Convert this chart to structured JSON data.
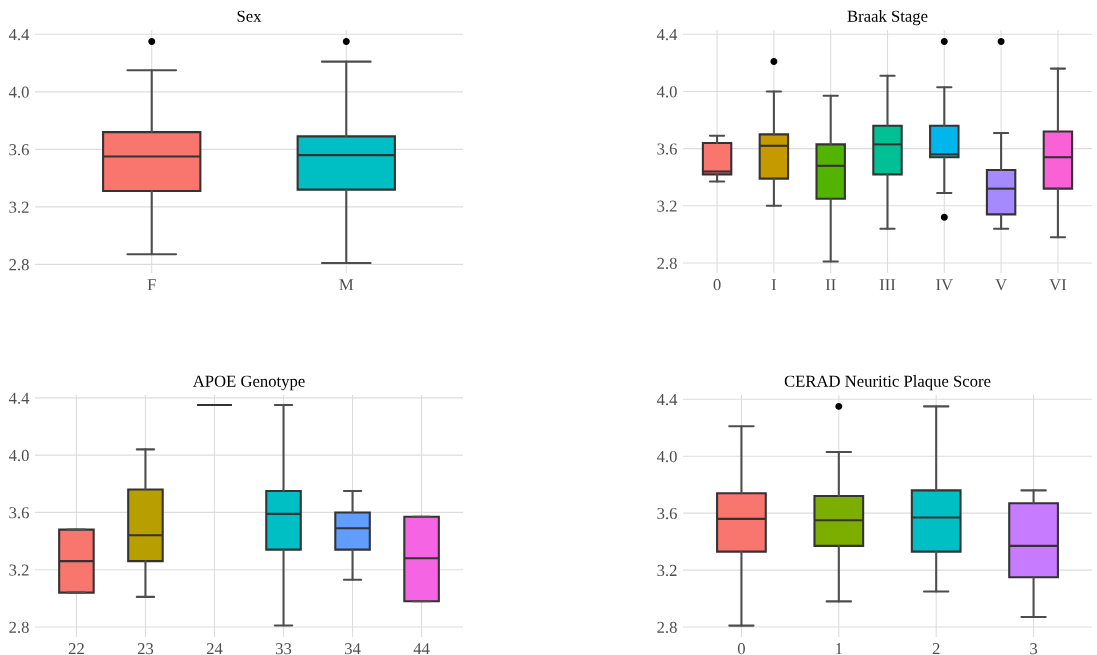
{
  "chart_data": [
    {
      "type": "box",
      "title": "Sex",
      "categories": [
        "F",
        "M"
      ],
      "colors": [
        "#f8766d",
        "#00bfc4"
      ],
      "ylim": [
        2.74,
        4.43
      ],
      "yticks": [
        {
          "value": 2.8,
          "label": "2.8"
        },
        {
          "value": 3.2,
          "label": "3.2"
        },
        {
          "value": 3.6,
          "label": "3.6"
        },
        {
          "value": 4.0,
          "label": "4.0"
        },
        {
          "value": 4.4,
          "label": "4.4"
        }
      ],
      "grid": true,
      "boxes": [
        {
          "low": 2.87,
          "q1": 3.31,
          "median": 3.55,
          "q3": 3.72,
          "high": 4.15,
          "outliers": [
            4.35
          ]
        },
        {
          "low": 2.81,
          "q1": 3.32,
          "median": 3.56,
          "q3": 3.69,
          "high": 4.21,
          "outliers": [
            4.35
          ]
        }
      ]
    },
    {
      "type": "box",
      "title": "Braak Stage",
      "categories": [
        "0",
        "I",
        "II",
        "III",
        "IV",
        "V",
        "VI"
      ],
      "colors": [
        "#f8766d",
        "#c49a00",
        "#53b400",
        "#00c094",
        "#00b6eb",
        "#a58aff",
        "#fb61d7"
      ],
      "ylim": [
        2.73,
        4.43
      ],
      "yticks": [
        {
          "value": 2.8,
          "label": "2.8"
        },
        {
          "value": 3.2,
          "label": "3.2"
        },
        {
          "value": 3.6,
          "label": "3.6"
        },
        {
          "value": 4.0,
          "label": "4.0"
        },
        {
          "value": 4.4,
          "label": "4.4"
        }
      ],
      "grid": true,
      "boxes": [
        {
          "low": 3.37,
          "q1": 3.42,
          "median": 3.44,
          "q3": 3.64,
          "high": 3.69
        },
        {
          "low": 3.2,
          "q1": 3.39,
          "median": 3.62,
          "q3": 3.7,
          "high": 4.0,
          "outliers": [
            4.21
          ]
        },
        {
          "low": 2.81,
          "q1": 3.25,
          "median": 3.48,
          "q3": 3.63,
          "high": 3.97
        },
        {
          "low": 3.04,
          "q1": 3.42,
          "median": 3.63,
          "q3": 3.76,
          "high": 4.11
        },
        {
          "low": 3.29,
          "q1": 3.54,
          "median": 3.56,
          "q3": 3.76,
          "high": 4.03,
          "outliers": [
            4.35,
            3.12
          ]
        },
        {
          "low": 3.04,
          "q1": 3.14,
          "median": 3.32,
          "q3": 3.45,
          "high": 3.71,
          "outliers": [
            4.35
          ]
        },
        {
          "low": 2.98,
          "q1": 3.32,
          "median": 3.54,
          "q3": 3.72,
          "high": 4.16
        }
      ]
    },
    {
      "type": "box",
      "title": "APOE Genotype",
      "categories": [
        "22",
        "23",
        "24",
        "33",
        "34",
        "44"
      ],
      "colors": [
        "#f8766d",
        "#b79f00",
        "#333333",
        "#00bfc4",
        "#619cff",
        "#f564e3"
      ],
      "ylim": [
        2.73,
        4.42
      ],
      "yticks": [
        {
          "value": 2.8,
          "label": "2.8"
        },
        {
          "value": 3.2,
          "label": "3.2"
        },
        {
          "value": 3.6,
          "label": "3.6"
        },
        {
          "value": 4.0,
          "label": "4.0"
        },
        {
          "value": 4.4,
          "label": "4.4"
        }
      ],
      "grid": true,
      "boxes": [
        {
          "low": 3.04,
          "q1": 3.04,
          "median": 3.26,
          "q3": 3.48,
          "high": 3.48
        },
        {
          "low": 3.01,
          "q1": 3.26,
          "median": 3.44,
          "q3": 3.76,
          "high": 4.04
        },
        {
          "low": 4.35,
          "q1": 4.35,
          "median": 4.35,
          "q3": 4.35,
          "high": 4.35
        },
        {
          "low": 2.81,
          "q1": 3.34,
          "median": 3.59,
          "q3": 3.75,
          "high": 4.35
        },
        {
          "low": 3.13,
          "q1": 3.34,
          "median": 3.49,
          "q3": 3.6,
          "high": 3.75
        },
        {
          "low": 2.98,
          "q1": 2.98,
          "median": 3.28,
          "q3": 3.57,
          "high": 3.57
        }
      ]
    },
    {
      "type": "box",
      "title": "CERAD Neuritic Plaque Score",
      "categories": [
        "0",
        "1",
        "2",
        "3"
      ],
      "colors": [
        "#f8766d",
        "#7cae00",
        "#00bfc4",
        "#c77cff"
      ],
      "ylim": [
        2.73,
        4.43
      ],
      "yticks": [
        {
          "value": 2.8,
          "label": "2.8"
        },
        {
          "value": 3.2,
          "label": "3.2"
        },
        {
          "value": 3.6,
          "label": "3.6"
        },
        {
          "value": 4.0,
          "label": "4.0"
        },
        {
          "value": 4.4,
          "label": "4.4"
        }
      ],
      "grid": true,
      "boxes": [
        {
          "low": 2.81,
          "q1": 3.33,
          "median": 3.56,
          "q3": 3.74,
          "high": 4.21
        },
        {
          "low": 2.98,
          "q1": 3.37,
          "median": 3.55,
          "q3": 3.72,
          "high": 4.03,
          "outliers": [
            4.35
          ]
        },
        {
          "low": 3.05,
          "q1": 3.33,
          "median": 3.57,
          "q3": 3.76,
          "high": 4.35
        },
        {
          "low": 2.87,
          "q1": 3.15,
          "median": 3.37,
          "q3": 3.67,
          "high": 3.76
        }
      ]
    }
  ]
}
